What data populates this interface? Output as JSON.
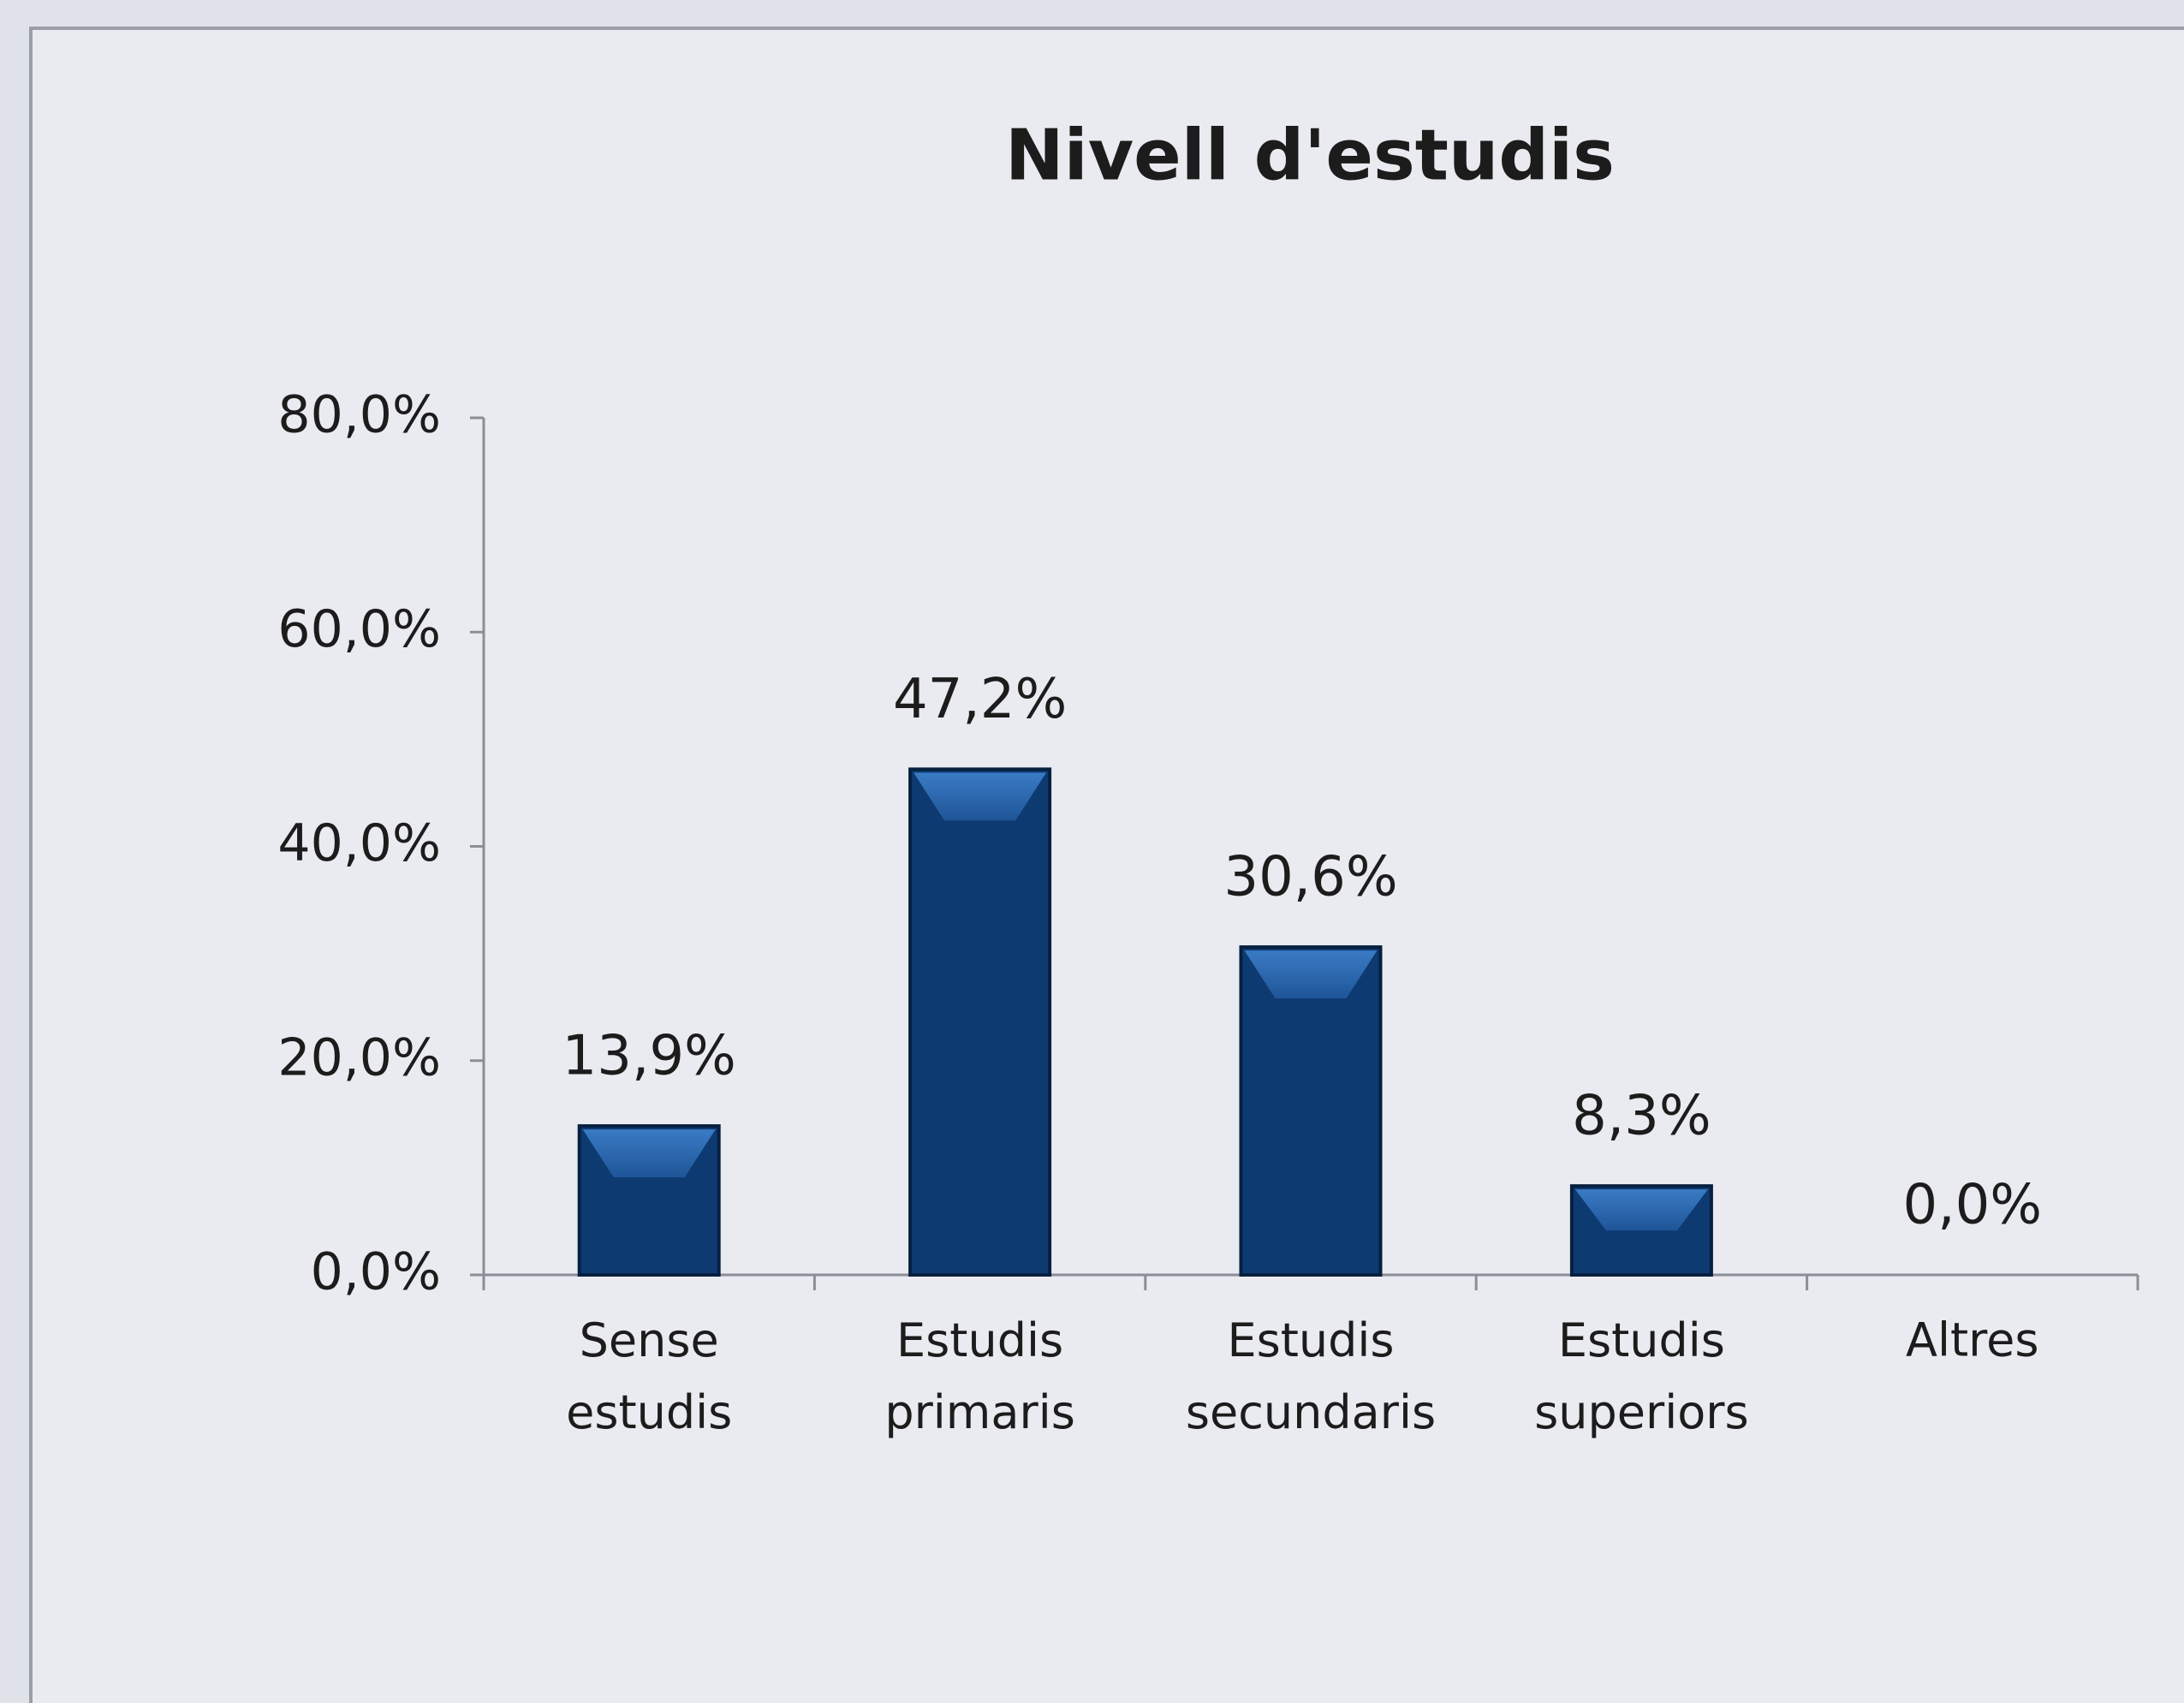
{
  "chart_data": {
    "type": "bar",
    "title": "Nivell d'estudis",
    "categories": [
      "Sense estudis",
      "Estudis primaris",
      "Estudis secundaris",
      "Estudis superiors",
      "Altres"
    ],
    "values": [
      13.9,
      47.2,
      30.6,
      8.3,
      0
    ],
    "value_labels": [
      "13,9%",
      "47,2%",
      "30,6%",
      "8,3%",
      "0,0%"
    ],
    "color": "#0e3a72",
    "ylim": [
      0,
      80
    ],
    "yticks": [
      {
        "value": 0,
        "label": "0,0%"
      },
      {
        "value": 20,
        "label": "20,0%"
      },
      {
        "value": 40,
        "label": "40,0%"
      },
      {
        "value": 60,
        "label": "60,0%"
      },
      {
        "value": 80,
        "label": "80,0%"
      }
    ],
    "grid": false
  }
}
